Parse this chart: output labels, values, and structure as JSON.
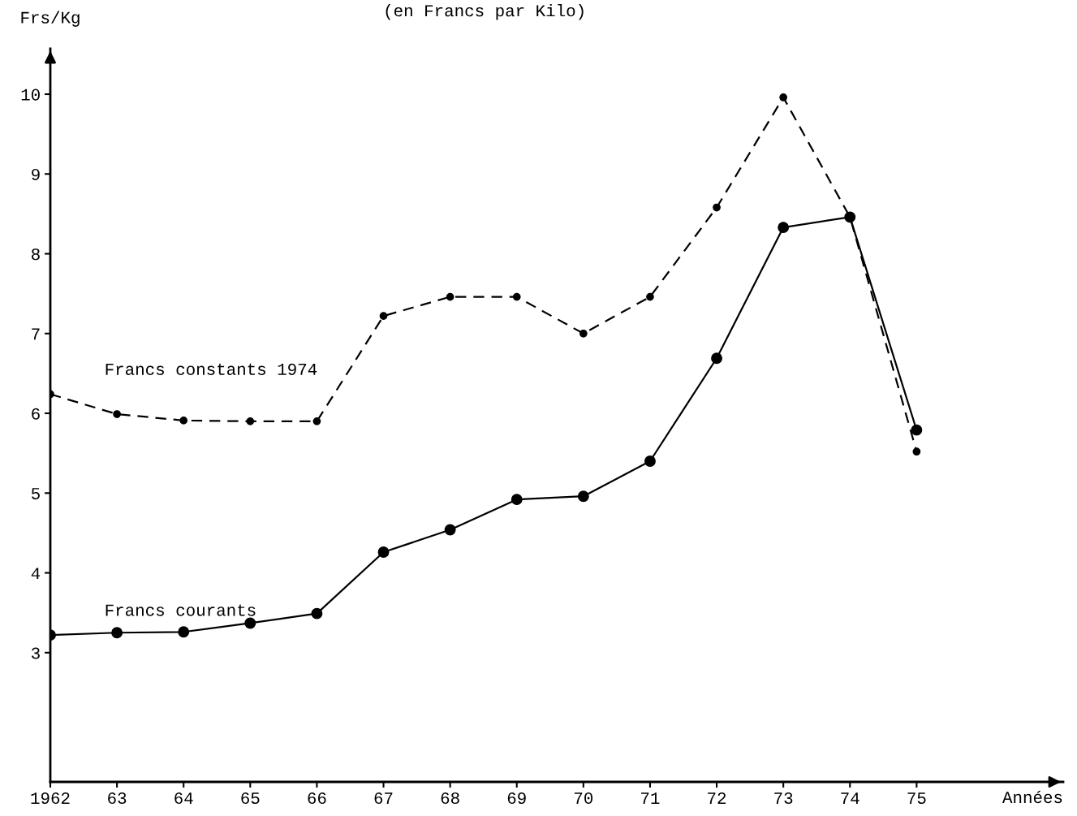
{
  "chart_data": {
    "type": "line",
    "subtitle": "(en Francs par Kilo)",
    "ylabel": "Frs/Kg",
    "xlabel": "Années",
    "x": [
      1962,
      1963,
      1964,
      1965,
      1966,
      1967,
      1968,
      1969,
      1970,
      1971,
      1972,
      1973,
      1974,
      1975
    ],
    "series": [
      {
        "name": "Francs constants 1974",
        "color": "#000000",
        "line_style": "dashed",
        "values": [
          6.24,
          5.99,
          5.91,
          5.9,
          5.9,
          7.22,
          7.46,
          7.46,
          7.0,
          7.46,
          8.58,
          9.96,
          8.46,
          5.52
        ]
      },
      {
        "name": "Francs courants",
        "color": "#000000",
        "line_style": "solid",
        "values": [
          3.22,
          3.25,
          3.26,
          3.37,
          3.49,
          4.26,
          4.54,
          4.92,
          4.96,
          5.4,
          6.69,
          8.33,
          8.46,
          5.79
        ]
      }
    ],
    "marker": "circle",
    "grid": false,
    "legend": false,
    "xlim": [
      1962,
      1977.2
    ],
    "ylim": [
      1.38,
      10.57
    ],
    "xticks": [
      {
        "value": 1962,
        "label": "1962"
      },
      {
        "value": 1963,
        "label": "63"
      },
      {
        "value": 1964,
        "label": "64"
      },
      {
        "value": 1965,
        "label": "65"
      },
      {
        "value": 1966,
        "label": "66"
      },
      {
        "value": 1967,
        "label": "67"
      },
      {
        "value": 1968,
        "label": "68"
      },
      {
        "value": 1969,
        "label": "69"
      },
      {
        "value": 1970,
        "label": "70"
      },
      {
        "value": 1971,
        "label": "71"
      },
      {
        "value": 1972,
        "label": "72"
      },
      {
        "value": 1973,
        "label": "73"
      },
      {
        "value": 1974,
        "label": "74"
      },
      {
        "value": 1975,
        "label": "75"
      }
    ],
    "yticks": [
      3,
      4,
      5,
      6,
      7,
      8,
      9,
      10
    ]
  }
}
